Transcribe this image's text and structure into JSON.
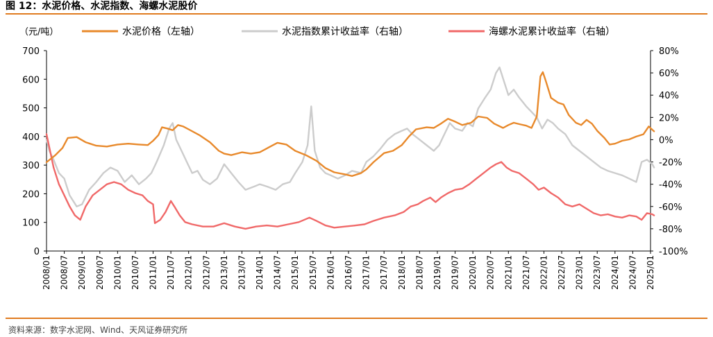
{
  "figure": {
    "title": "图 12：水泥价格、水泥指数、海螺水泥股价",
    "source": "资料来源：数字水泥网、Wind、天风证券研究所"
  },
  "chart_data": {
    "type": "line",
    "left_unit": "（元/吨）",
    "y_left": {
      "lim": [
        0,
        700
      ],
      "ticks": [
        0,
        100,
        200,
        300,
        400,
        500,
        600,
        700
      ]
    },
    "y_right": {
      "lim": [
        -100,
        80
      ],
      "ticks": [
        -100,
        -80,
        -60,
        -40,
        -20,
        0,
        20,
        40,
        60,
        80
      ],
      "tick_labels": [
        "-100%",
        "-80%",
        "-60%",
        "-40%",
        "-20%",
        "0%",
        "20%",
        "40%",
        "60%",
        "80%"
      ]
    },
    "x_ticks": [
      "2008/01",
      "2008/07",
      "2009/01",
      "2009/07",
      "2010/01",
      "2010/07",
      "2011/01",
      "2011/07",
      "2012/01",
      "2012/07",
      "2013/01",
      "2013/07",
      "2014/01",
      "2014/07",
      "2015/01",
      "2015/07",
      "2016/01",
      "2016/07",
      "2017/01",
      "2017/07",
      "2018/01",
      "2018/07",
      "2019/01",
      "2019/07",
      "2020/01",
      "2020/07",
      "2021/01",
      "2021/07",
      "2022/01",
      "2022/07",
      "2023/01",
      "2023/07",
      "2024/01",
      "2024/07",
      "2025/01"
    ],
    "legend_position": "top",
    "grid": false,
    "series": [
      {
        "name": "水泥价格（左轴）",
        "axis": "left",
        "color": "#e8892b",
        "points": [
          [
            2008.0,
            310
          ],
          [
            2008.25,
            335
          ],
          [
            2008.45,
            360
          ],
          [
            2008.6,
            395
          ],
          [
            2008.85,
            398
          ],
          [
            2009.1,
            380
          ],
          [
            2009.4,
            368
          ],
          [
            2009.7,
            365
          ],
          [
            2010.0,
            372
          ],
          [
            2010.3,
            375
          ],
          [
            2010.6,
            372
          ],
          [
            2010.85,
            370
          ],
          [
            2011.0,
            385
          ],
          [
            2011.15,
            405
          ],
          [
            2011.25,
            432
          ],
          [
            2011.4,
            428
          ],
          [
            2011.55,
            422
          ],
          [
            2011.7,
            440
          ],
          [
            2011.85,
            435
          ],
          [
            2012.0,
            425
          ],
          [
            2012.3,
            405
          ],
          [
            2012.6,
            380
          ],
          [
            2012.85,
            350
          ],
          [
            2013.0,
            340
          ],
          [
            2013.2,
            335
          ],
          [
            2013.5,
            345
          ],
          [
            2013.75,
            340
          ],
          [
            2014.0,
            345
          ],
          [
            2014.3,
            365
          ],
          [
            2014.5,
            378
          ],
          [
            2014.75,
            372
          ],
          [
            2015.0,
            350
          ],
          [
            2015.3,
            335
          ],
          [
            2015.6,
            315
          ],
          [
            2015.85,
            290
          ],
          [
            2016.1,
            275
          ],
          [
            2016.4,
            268
          ],
          [
            2016.6,
            262
          ],
          [
            2016.85,
            272
          ],
          [
            2017.0,
            285
          ],
          [
            2017.2,
            310
          ],
          [
            2017.5,
            342
          ],
          [
            2017.75,
            350
          ],
          [
            2018.0,
            370
          ],
          [
            2018.2,
            400
          ],
          [
            2018.4,
            425
          ],
          [
            2018.7,
            432
          ],
          [
            2018.9,
            430
          ],
          [
            2019.1,
            445
          ],
          [
            2019.3,
            462
          ],
          [
            2019.5,
            452
          ],
          [
            2019.7,
            440
          ],
          [
            2019.95,
            448
          ],
          [
            2020.15,
            470
          ],
          [
            2020.4,
            465
          ],
          [
            2020.6,
            445
          ],
          [
            2020.85,
            430
          ],
          [
            2021.0,
            440
          ],
          [
            2021.15,
            448
          ],
          [
            2021.35,
            442
          ],
          [
            2021.5,
            438
          ],
          [
            2021.65,
            430
          ],
          [
            2021.8,
            470
          ],
          [
            2021.9,
            610
          ],
          [
            2021.97,
            625
          ],
          [
            2022.05,
            595
          ],
          [
            2022.2,
            535
          ],
          [
            2022.4,
            518
          ],
          [
            2022.55,
            512
          ],
          [
            2022.7,
            475
          ],
          [
            2022.9,
            448
          ],
          [
            2023.05,
            440
          ],
          [
            2023.2,
            458
          ],
          [
            2023.35,
            445
          ],
          [
            2023.5,
            420
          ],
          [
            2023.7,
            395
          ],
          [
            2023.85,
            372
          ],
          [
            2024.0,
            375
          ],
          [
            2024.2,
            385
          ],
          [
            2024.4,
            390
          ],
          [
            2024.6,
            400
          ],
          [
            2024.8,
            408
          ],
          [
            2024.95,
            435
          ],
          [
            2025.1,
            418
          ]
        ]
      },
      {
        "name": "水泥指数累计收益率（右轴）",
        "axis": "right",
        "color": "#cccccc",
        "points": [
          [
            2008.0,
            0
          ],
          [
            2008.08,
            -10
          ],
          [
            2008.2,
            -18
          ],
          [
            2008.35,
            -30
          ],
          [
            2008.5,
            -35
          ],
          [
            2008.65,
            -50
          ],
          [
            2008.85,
            -60
          ],
          [
            2009.0,
            -58
          ],
          [
            2009.2,
            -45
          ],
          [
            2009.4,
            -38
          ],
          [
            2009.6,
            -30
          ],
          [
            2009.8,
            -25
          ],
          [
            2010.0,
            -28
          ],
          [
            2010.2,
            -38
          ],
          [
            2010.4,
            -32
          ],
          [
            2010.6,
            -40
          ],
          [
            2010.8,
            -35
          ],
          [
            2010.95,
            -30
          ],
          [
            2011.1,
            -20
          ],
          [
            2011.3,
            -5
          ],
          [
            2011.45,
            10
          ],
          [
            2011.55,
            15
          ],
          [
            2011.65,
            0
          ],
          [
            2011.8,
            -10
          ],
          [
            2011.95,
            -20
          ],
          [
            2012.1,
            -30
          ],
          [
            2012.25,
            -28
          ],
          [
            2012.4,
            -36
          ],
          [
            2012.6,
            -40
          ],
          [
            2012.8,
            -35
          ],
          [
            2013.0,
            -22
          ],
          [
            2013.2,
            -30
          ],
          [
            2013.4,
            -38
          ],
          [
            2013.6,
            -45
          ],
          [
            2013.85,
            -42
          ],
          [
            2014.0,
            -40
          ],
          [
            2014.2,
            -42
          ],
          [
            2014.45,
            -45
          ],
          [
            2014.65,
            -40
          ],
          [
            2014.85,
            -38
          ],
          [
            2015.0,
            -30
          ],
          [
            2015.2,
            -20
          ],
          [
            2015.35,
            -5
          ],
          [
            2015.45,
            30
          ],
          [
            2015.55,
            -10
          ],
          [
            2015.7,
            -25
          ],
          [
            2015.85,
            -30
          ],
          [
            2016.0,
            -32
          ],
          [
            2016.2,
            -35
          ],
          [
            2016.4,
            -32
          ],
          [
            2016.6,
            -28
          ],
          [
            2016.85,
            -30
          ],
          [
            2017.0,
            -20
          ],
          [
            2017.2,
            -15
          ],
          [
            2017.4,
            -8
          ],
          [
            2017.6,
            0
          ],
          [
            2017.8,
            5
          ],
          [
            2018.0,
            8
          ],
          [
            2018.15,
            10
          ],
          [
            2018.3,
            5
          ],
          [
            2018.5,
            0
          ],
          [
            2018.7,
            -5
          ],
          [
            2018.9,
            -10
          ],
          [
            2019.05,
            -5
          ],
          [
            2019.2,
            5
          ],
          [
            2019.35,
            15
          ],
          [
            2019.5,
            10
          ],
          [
            2019.7,
            8
          ],
          [
            2019.85,
            15
          ],
          [
            2020.0,
            12
          ],
          [
            2020.15,
            28
          ],
          [
            2020.35,
            38
          ],
          [
            2020.5,
            45
          ],
          [
            2020.65,
            60
          ],
          [
            2020.75,
            65
          ],
          [
            2020.85,
            55
          ],
          [
            2021.0,
            40
          ],
          [
            2021.15,
            45
          ],
          [
            2021.3,
            38
          ],
          [
            2021.5,
            30
          ],
          [
            2021.65,
            25
          ],
          [
            2021.8,
            20
          ],
          [
            2021.95,
            10
          ],
          [
            2022.1,
            18
          ],
          [
            2022.25,
            15
          ],
          [
            2022.4,
            10
          ],
          [
            2022.6,
            5
          ],
          [
            2022.8,
            -5
          ],
          [
            2023.0,
            -10
          ],
          [
            2023.2,
            -15
          ],
          [
            2023.4,
            -20
          ],
          [
            2023.6,
            -25
          ],
          [
            2023.8,
            -28
          ],
          [
            2024.0,
            -30
          ],
          [
            2024.2,
            -32
          ],
          [
            2024.4,
            -35
          ],
          [
            2024.6,
            -38
          ],
          [
            2024.75,
            -20
          ],
          [
            2024.9,
            -18
          ],
          [
            2025.05,
            -22
          ],
          [
            2025.1,
            -25
          ]
        ]
      },
      {
        "name": "海螺水泥累计收益率（右轴）",
        "axis": "right",
        "color": "#f06868",
        "points": [
          [
            2008.0,
            5
          ],
          [
            2008.1,
            -10
          ],
          [
            2008.2,
            -25
          ],
          [
            2008.35,
            -40
          ],
          [
            2008.5,
            -50
          ],
          [
            2008.65,
            -60
          ],
          [
            2008.8,
            -68
          ],
          [
            2008.95,
            -72
          ],
          [
            2009.1,
            -60
          ],
          [
            2009.3,
            -50
          ],
          [
            2009.5,
            -45
          ],
          [
            2009.7,
            -40
          ],
          [
            2009.9,
            -38
          ],
          [
            2010.1,
            -40
          ],
          [
            2010.3,
            -45
          ],
          [
            2010.5,
            -48
          ],
          [
            2010.7,
            -50
          ],
          [
            2010.85,
            -55
          ],
          [
            2011.0,
            -58
          ],
          [
            2011.05,
            -75
          ],
          [
            2011.2,
            -72
          ],
          [
            2011.35,
            -65
          ],
          [
            2011.5,
            -55
          ],
          [
            2011.6,
            -60
          ],
          [
            2011.75,
            -68
          ],
          [
            2011.9,
            -74
          ],
          [
            2012.1,
            -76
          ],
          [
            2012.4,
            -78
          ],
          [
            2012.7,
            -78
          ],
          [
            2013.0,
            -75
          ],
          [
            2013.3,
            -78
          ],
          [
            2013.6,
            -80
          ],
          [
            2013.9,
            -78
          ],
          [
            2014.2,
            -77
          ],
          [
            2014.5,
            -78
          ],
          [
            2014.8,
            -76
          ],
          [
            2015.1,
            -74
          ],
          [
            2015.4,
            -70
          ],
          [
            2015.6,
            -73
          ],
          [
            2015.85,
            -77
          ],
          [
            2016.1,
            -79
          ],
          [
            2016.4,
            -78
          ],
          [
            2016.7,
            -77
          ],
          [
            2016.95,
            -76
          ],
          [
            2017.2,
            -73
          ],
          [
            2017.5,
            -70
          ],
          [
            2017.8,
            -68
          ],
          [
            2018.05,
            -65
          ],
          [
            2018.25,
            -60
          ],
          [
            2018.45,
            -58
          ],
          [
            2018.6,
            -55
          ],
          [
            2018.8,
            -52
          ],
          [
            2018.95,
            -56
          ],
          [
            2019.1,
            -52
          ],
          [
            2019.3,
            -48
          ],
          [
            2019.5,
            -45
          ],
          [
            2019.7,
            -44
          ],
          [
            2019.9,
            -40
          ],
          [
            2020.1,
            -35
          ],
          [
            2020.3,
            -30
          ],
          [
            2020.5,
            -25
          ],
          [
            2020.65,
            -22
          ],
          [
            2020.8,
            -20
          ],
          [
            2020.95,
            -25
          ],
          [
            2021.1,
            -28
          ],
          [
            2021.3,
            -30
          ],
          [
            2021.5,
            -35
          ],
          [
            2021.7,
            -40
          ],
          [
            2021.85,
            -45
          ],
          [
            2022.0,
            -43
          ],
          [
            2022.2,
            -48
          ],
          [
            2022.4,
            -52
          ],
          [
            2022.6,
            -58
          ],
          [
            2022.8,
            -60
          ],
          [
            2023.0,
            -58
          ],
          [
            2023.2,
            -62
          ],
          [
            2023.4,
            -66
          ],
          [
            2023.6,
            -68
          ],
          [
            2023.8,
            -67
          ],
          [
            2024.0,
            -69
          ],
          [
            2024.2,
            -70
          ],
          [
            2024.4,
            -68
          ],
          [
            2024.6,
            -69
          ],
          [
            2024.75,
            -72
          ],
          [
            2024.9,
            -66
          ],
          [
            2025.05,
            -67
          ],
          [
            2025.1,
            -68
          ]
        ]
      }
    ]
  }
}
